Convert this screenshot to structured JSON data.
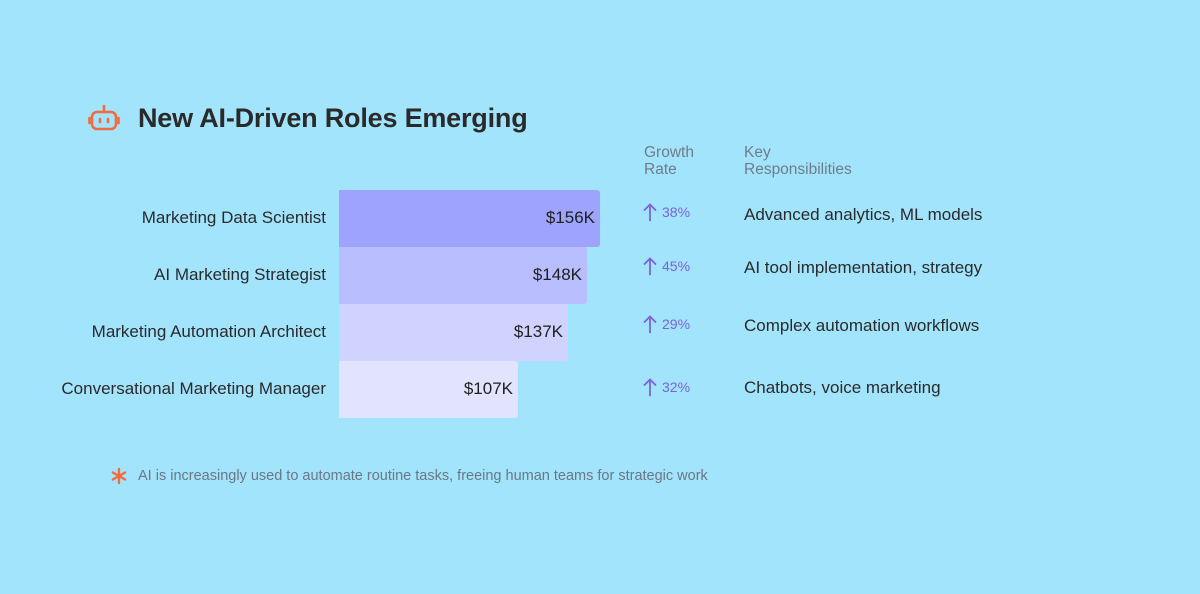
{
  "header": {
    "title": "New AI-Driven Roles Emerging",
    "icon": "robot-icon",
    "icon_color": "#f26a3d"
  },
  "columns": {
    "growth_line1": "Growth",
    "growth_line2": "Rate",
    "resp_line1": "Key",
    "resp_line2": "Responsibilities"
  },
  "rows": [
    {
      "role": "Marketing Data Scientist",
      "salary_label": "$156K",
      "growth": "38%",
      "responsibilities": "Advanced analytics, ML models",
      "color": "#9ea4fd"
    },
    {
      "role": "AI Marketing Strategist",
      "salary_label": "$148K",
      "growth": "45%",
      "responsibilities": "AI tool implementation, strategy",
      "color": "#b7bdfd"
    },
    {
      "role": "Marketing Automation Architect",
      "salary_label": "$137K",
      "growth": "29%",
      "responsibilities": "Complex automation workflows",
      "color": "#cfd3fd"
    },
    {
      "role": "Conversational Marketing Manager",
      "salary_label": "$107K",
      "growth": "32%",
      "responsibilities": "Chatbots, voice marketing",
      "color": "#e2e4fe"
    }
  ],
  "chart_data": {
    "type": "bar",
    "orientation": "horizontal",
    "categories": [
      "Marketing Data Scientist",
      "AI Marketing Strategist",
      "Marketing Automation Architect",
      "Conversational Marketing Manager"
    ],
    "values": [
      156,
      148,
      137,
      107
    ],
    "value_labels": [
      "$156K",
      "$148K",
      "$137K",
      "$107K"
    ],
    "growth_rates": [
      38,
      45,
      29,
      32
    ],
    "title": "New AI-Driven Roles Emerging",
    "grid": false
  },
  "footnote": {
    "text": "AI is increasingly used to automate routine tasks, freeing human teams for strategic work",
    "icon": "asterisk-icon",
    "color": "#f26a3d"
  },
  "accent_colors": {
    "growth_arrow": "#7b62d8"
  }
}
